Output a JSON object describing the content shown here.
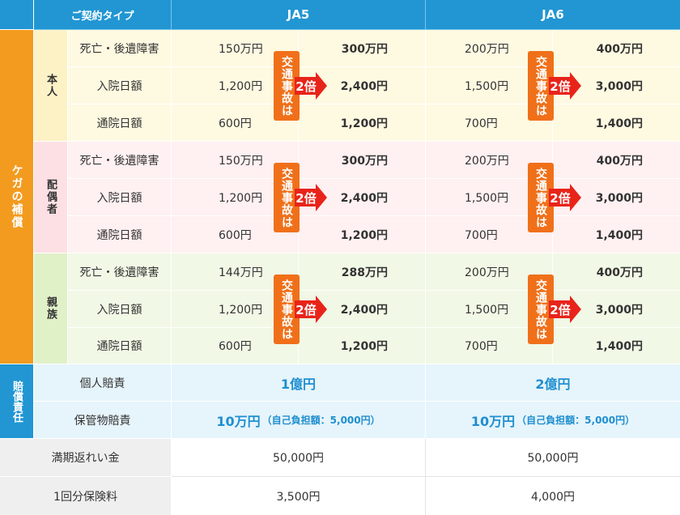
{
  "header": {
    "type_label": "ご契約タイプ",
    "col1": "JA5",
    "col2": "JA6"
  },
  "injury": {
    "title": "ケガの補償",
    "groups": [
      {
        "name": "本人",
        "rows": [
          {
            "label": "死亡・後遺障害",
            "ja5_base": "150万円",
            "ja5_double": "300万円",
            "ja6_base": "200万円",
            "ja6_double": "400万円"
          },
          {
            "label": "入院日額",
            "ja5_base": "1,200円",
            "ja5_double": "2,400円",
            "ja6_base": "1,500円",
            "ja6_double": "3,000円"
          },
          {
            "label": "通院日額",
            "ja5_base": "600円",
            "ja5_double": "1,200円",
            "ja6_base": "700円",
            "ja6_double": "1,400円"
          }
        ]
      },
      {
        "name": "配偶者",
        "rows": [
          {
            "label": "死亡・後遺障害",
            "ja5_base": "150万円",
            "ja5_double": "300万円",
            "ja6_base": "200万円",
            "ja6_double": "400万円"
          },
          {
            "label": "入院日額",
            "ja5_base": "1,200円",
            "ja5_double": "2,400円",
            "ja6_base": "1,500円",
            "ja6_double": "3,000円"
          },
          {
            "label": "通院日額",
            "ja5_base": "600円",
            "ja5_double": "1,200円",
            "ja6_base": "700円",
            "ja6_double": "1,400円"
          }
        ]
      },
      {
        "name": "親族",
        "rows": [
          {
            "label": "死亡・後遺障害",
            "ja5_base": "144万円",
            "ja5_double": "288万円",
            "ja6_base": "200万円",
            "ja6_double": "400万円"
          },
          {
            "label": "入院日額",
            "ja5_base": "1,200円",
            "ja5_double": "2,400円",
            "ja6_base": "1,500円",
            "ja6_double": "3,000円"
          },
          {
            "label": "通院日額",
            "ja5_base": "600円",
            "ja5_double": "1,200円",
            "ja6_base": "700円",
            "ja6_double": "1,400円"
          }
        ]
      }
    ],
    "badge_text": "交通事故は",
    "badge_multiplier": "2倍"
  },
  "liability": {
    "title": "賠償責任",
    "rows": [
      {
        "label": "個人賠責",
        "ja5": "1億円",
        "ja5_note": "",
        "ja6": "2億円",
        "ja6_note": ""
      },
      {
        "label": "保管物賠責",
        "ja5": "10万円",
        "ja5_note": "（自己負担額：5,000円）",
        "ja6": "10万円",
        "ja6_note": "（自己負担額：5,000円）"
      }
    ]
  },
  "maturity": {
    "label": "満期返れい金",
    "ja5": "50,000円",
    "ja6": "50,000円"
  },
  "premium": {
    "label": "1回分保険料",
    "ja5": "3,500円",
    "ja6": "4,000円"
  },
  "colors": {
    "header_blue": "#2196d3",
    "injury_orange": "#f29b1f",
    "badge_orange": "#f0701a",
    "arrow_red": "#e8241a",
    "accent_text_blue": "#1e8fd0"
  }
}
